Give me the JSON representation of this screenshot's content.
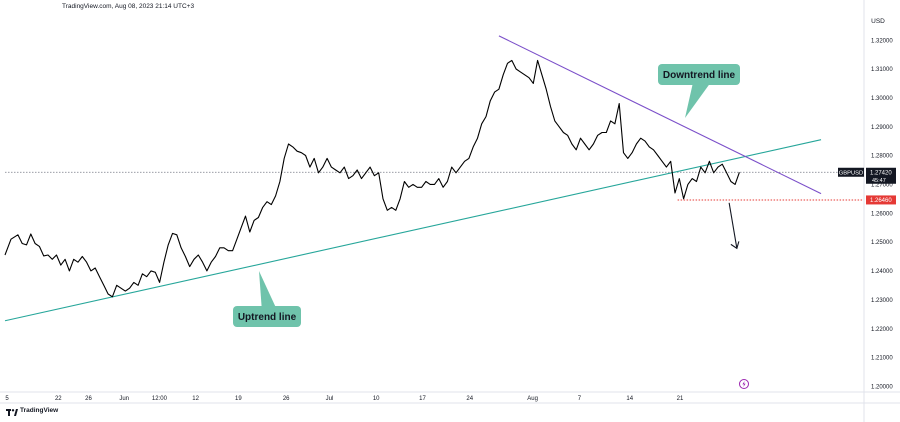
{
  "header": {
    "caption": "TradingView.com, Aug 08, 2023 21:14 UTC+3"
  },
  "footer": {
    "brand": "TradingView"
  },
  "colors": {
    "price": "#000000",
    "uptrend": "#26a69a",
    "downtrend": "#7b4fc9",
    "support": "#e53935",
    "label_bg": "#6fc3ab",
    "badge_bg": "#131722"
  },
  "chart_data": {
    "type": "line",
    "symbol": "GBPUSD",
    "currency": "USD",
    "last_price_label": "1.27420",
    "countdown_label": "45:47",
    "support_label": "1.26460",
    "last_price": 1.2742,
    "support_level": 1.2646,
    "ylim": [
      1.198,
      1.327
    ],
    "y_ticks": [
      "1.20000",
      "1.21000",
      "1.22000",
      "1.23000",
      "1.24000",
      "1.25000",
      "1.26000",
      "1.27000",
      "1.28000",
      "1.29000",
      "1.30000",
      "1.31000",
      "1.32000"
    ],
    "x_ticks": [
      "5",
      "22",
      "26",
      "Jun",
      "12:00",
      "12",
      "19",
      "26",
      "Jul",
      "10",
      "17",
      "24",
      "Aug",
      "7",
      "14",
      "21"
    ],
    "annotations": {
      "uptrend": "Uptrend line",
      "downtrend": "Downtrend line"
    },
    "uptrend_line": {
      "from": [
        0,
        1.2227
      ],
      "to": [
        95,
        1.2855
      ]
    },
    "downtrend_line": {
      "from": [
        57.5,
        1.3215
      ],
      "to": [
        95,
        1.2668
      ]
    },
    "projection_arrow": {
      "from": [
        84.3,
        1.2636
      ],
      "to": [
        85.2,
        1.2478
      ]
    },
    "series": [
      {
        "values": [
          [
            0,
            1.2455
          ],
          [
            0.7,
            1.251
          ],
          [
            1.5,
            1.2525
          ],
          [
            2,
            1.2495
          ],
          [
            2.5,
            1.249
          ],
          [
            3,
            1.2528
          ],
          [
            3.5,
            1.2495
          ],
          [
            4,
            1.2485
          ],
          [
            4.5,
            1.2452
          ],
          [
            5,
            1.2455
          ],
          [
            5.5,
            1.244
          ],
          [
            6,
            1.2455
          ],
          [
            6.5,
            1.242
          ],
          [
            7,
            1.244
          ],
          [
            7.5,
            1.24
          ],
          [
            8,
            1.244
          ],
          [
            8.5,
            1.243
          ],
          [
            9,
            1.245
          ],
          [
            9.5,
            1.243
          ],
          [
            10,
            1.24
          ],
          [
            10.5,
            1.241
          ],
          [
            11,
            1.238
          ],
          [
            11.5,
            1.235
          ],
          [
            12,
            1.232
          ],
          [
            12.5,
            1.231
          ],
          [
            13,
            1.235
          ],
          [
            13.5,
            1.234
          ],
          [
            14,
            1.233
          ],
          [
            14.5,
            1.234
          ],
          [
            15,
            1.236
          ],
          [
            15.5,
            1.235
          ],
          [
            16,
            1.239
          ],
          [
            16.5,
            1.238
          ],
          [
            17,
            1.24
          ],
          [
            17.5,
            1.2395
          ],
          [
            18,
            1.236
          ],
          [
            18.5,
            1.243
          ],
          [
            19,
            1.249
          ],
          [
            19.5,
            1.253
          ],
          [
            20,
            1.2525
          ],
          [
            20.5,
            1.248
          ],
          [
            21,
            1.245
          ],
          [
            21.5,
            1.2415
          ],
          [
            22,
            1.244
          ],
          [
            22.5,
            1.2455
          ],
          [
            23,
            1.243
          ],
          [
            23.5,
            1.24
          ],
          [
            24,
            1.243
          ],
          [
            24.5,
            1.245
          ],
          [
            25,
            1.248
          ],
          [
            25.5,
            1.248
          ],
          [
            26,
            1.247
          ],
          [
            26.5,
            1.247
          ],
          [
            27,
            1.251
          ],
          [
            27.5,
            1.255
          ],
          [
            28,
            1.259
          ],
          [
            28.5,
            1.2535
          ],
          [
            29,
            1.2575
          ],
          [
            29.5,
            1.2585
          ],
          [
            30,
            1.262
          ],
          [
            30.5,
            1.264
          ],
          [
            31,
            1.263
          ],
          [
            31.5,
            1.266
          ],
          [
            32,
            1.271
          ],
          [
            32.5,
            1.279
          ],
          [
            33,
            1.284
          ],
          [
            33.5,
            1.283
          ],
          [
            34,
            1.2815
          ],
          [
            34.5,
            1.281
          ],
          [
            35,
            1.28
          ],
          [
            35.5,
            1.276
          ],
          [
            36,
            1.279
          ],
          [
            36.5,
            1.274
          ],
          [
            37,
            1.276
          ],
          [
            37.5,
            1.279
          ],
          [
            38,
            1.276
          ],
          [
            38.5,
            1.275
          ],
          [
            39,
            1.274
          ],
          [
            39.5,
            1.276
          ],
          [
            40,
            1.272
          ],
          [
            40.5,
            1.273
          ],
          [
            41,
            1.275
          ],
          [
            41.5,
            1.272
          ],
          [
            42,
            1.274
          ],
          [
            42.5,
            1.276
          ],
          [
            43,
            1.273
          ],
          [
            43.5,
            1.274
          ],
          [
            44,
            1.265
          ],
          [
            44.5,
            1.261
          ],
          [
            45,
            1.262
          ],
          [
            45.5,
            1.261
          ],
          [
            46,
            1.265
          ],
          [
            46.5,
            1.271
          ],
          [
            47,
            1.269
          ],
          [
            47.5,
            1.27
          ],
          [
            48,
            1.269
          ],
          [
            48.5,
            1.269
          ],
          [
            49,
            1.271
          ],
          [
            49.5,
            1.27
          ],
          [
            50,
            1.27
          ],
          [
            50.5,
            1.272
          ],
          [
            51,
            1.269
          ],
          [
            51.5,
            1.271
          ],
          [
            52,
            1.276
          ],
          [
            52.5,
            1.274
          ],
          [
            53,
            1.276
          ],
          [
            53.5,
            1.278
          ],
          [
            54,
            1.279
          ],
          [
            54.5,
            1.283
          ],
          [
            55,
            1.286
          ],
          [
            55.5,
            1.291
          ],
          [
            56,
            1.2935
          ],
          [
            56.5,
            1.299
          ],
          [
            57,
            1.302
          ],
          [
            57.5,
            1.303
          ],
          [
            58,
            1.308
          ],
          [
            58.5,
            1.312
          ],
          [
            59,
            1.313
          ],
          [
            59.5,
            1.31
          ],
          [
            60,
            1.309
          ],
          [
            60.5,
            1.308
          ],
          [
            61,
            1.307
          ],
          [
            61.5,
            1.305
          ],
          [
            62,
            1.313
          ],
          [
            62.5,
            1.308
          ],
          [
            63,
            1.303
          ],
          [
            63.5,
            1.297
          ],
          [
            64,
            1.292
          ],
          [
            64.5,
            1.29
          ],
          [
            65,
            1.288
          ],
          [
            65.5,
            1.287
          ],
          [
            66,
            1.284
          ],
          [
            66.5,
            1.282
          ],
          [
            67,
            1.286
          ],
          [
            67.5,
            1.284
          ],
          [
            68,
            1.282
          ],
          [
            68.5,
            1.284
          ],
          [
            69,
            1.287
          ],
          [
            69.5,
            1.288
          ],
          [
            70,
            1.288
          ],
          [
            70.5,
            1.292
          ],
          [
            71,
            1.291
          ],
          [
            71.5,
            1.298
          ],
          [
            72,
            1.281
          ],
          [
            72.5,
            1.279
          ],
          [
            73,
            1.281
          ],
          [
            73.5,
            1.284
          ],
          [
            74,
            1.286
          ],
          [
            74.5,
            1.285
          ],
          [
            75,
            1.283
          ],
          [
            75.5,
            1.282
          ],
          [
            76,
            1.28
          ],
          [
            76.5,
            1.278
          ],
          [
            77,
            1.276
          ],
          [
            77.5,
            1.278
          ],
          [
            78,
            1.267
          ],
          [
            78.5,
            1.272
          ],
          [
            79,
            1.265
          ],
          [
            79.5,
            1.27
          ],
          [
            80,
            1.272
          ],
          [
            80.5,
            1.271
          ],
          [
            81,
            1.276
          ],
          [
            81.5,
            1.274
          ],
          [
            82,
            1.278
          ],
          [
            82.5,
            1.274
          ],
          [
            83,
            1.276
          ],
          [
            83.5,
            1.277
          ],
          [
            84,
            1.274
          ],
          [
            84.5,
            1.271
          ],
          [
            85,
            1.27
          ],
          [
            85.5,
            1.2742
          ]
        ]
      }
    ]
  }
}
